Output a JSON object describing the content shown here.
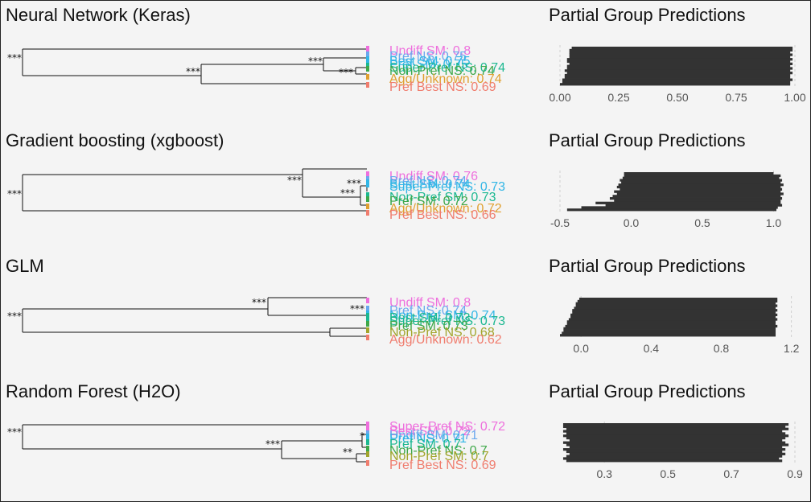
{
  "palette": {
    "background": "#f4f4f4",
    "bar": "#333333",
    "branch": "#111111",
    "leaf_colors": [
      "#ee6fdd",
      "#6aa8ee",
      "#32b6e6",
      "#1db891",
      "#3fa84a",
      "#a2a52c",
      "#e0a030",
      "#f07d6e"
    ]
  },
  "chart_data": [
    {
      "type": "dendrogram+bar",
      "model_title": "Neural Network (Keras)",
      "bar_title": "Partial Group Predictions",
      "leaves": [
        {
          "label": "Undiff SM: 0.8",
          "color_index": 0
        },
        {
          "label": "Pref NS: 0.75",
          "color_index": 1
        },
        {
          "label": "Best SM: 0.75",
          "color_index": 2
        },
        {
          "label": "Pref SM: 0.75",
          "color_index": 2
        },
        {
          "label": "Super-Pref NS: 0.74",
          "color_index": 3
        },
        {
          "label": "Non-Pref NS: 0.74",
          "color_index": 4
        },
        {
          "label": "Agg/Unknown: 0.74",
          "color_index": 6
        },
        {
          "label": "Pref Best NS: 0.69",
          "color_index": 7
        }
      ],
      "significance": [
        "***",
        "***",
        "***",
        "***"
      ],
      "xlim": [
        0,
        1
      ],
      "xticks": [
        0.0,
        0.25,
        0.5,
        0.75,
        1.0
      ],
      "xtick_labels": [
        "0.00",
        "0.25",
        "0.50",
        "0.75",
        "1.00"
      ],
      "bars": [
        [
          0.05,
          0.99
        ],
        [
          0.04,
          0.99
        ],
        [
          0.04,
          0.98
        ],
        [
          0.04,
          0.99
        ],
        [
          0.04,
          0.98
        ],
        [
          0.03,
          0.99
        ],
        [
          0.03,
          0.98
        ],
        [
          0.04,
          0.99
        ],
        [
          0.03,
          0.98
        ],
        [
          0.03,
          0.99
        ],
        [
          0.02,
          0.98
        ],
        [
          0.03,
          0.99
        ],
        [
          0.02,
          0.98
        ],
        [
          0.02,
          0.98
        ],
        [
          0.01,
          0.99
        ],
        [
          0.01,
          0.98
        ],
        [
          0.0,
          0.98
        ]
      ]
    },
    {
      "type": "dendrogram+bar",
      "model_title": "Gradient boosting (xgboost)",
      "bar_title": "Partial Group Predictions",
      "leaves": [
        {
          "label": "Undiff SM: 0.76",
          "color_index": 0
        },
        {
          "label": "Pref NS: 0.74",
          "color_index": 1
        },
        {
          "label": "Best SM: 0.74",
          "color_index": 2
        },
        {
          "label": "Super-Pref NS: 0.73",
          "color_index": 2
        },
        {
          "label": "Non-Pref SM: 0.73",
          "color_index": 3
        },
        {
          "label": "Pref SM: 0.72",
          "color_index": 4
        },
        {
          "label": "Agg/Unknown: 0.72",
          "color_index": 6
        },
        {
          "label": "Pref Best NS: 0.66",
          "color_index": 7
        }
      ],
      "significance": [
        "***",
        "***",
        "***",
        "***"
      ],
      "xlim": [
        -0.5,
        1.15
      ],
      "xticks": [
        -0.5,
        0.0,
        0.5,
        1.0
      ],
      "xtick_labels": [
        "-0.5",
        "0.0",
        "0.5",
        "1.0"
      ],
      "bars": [
        [
          -0.05,
          1.0
        ],
        [
          -0.05,
          1.05
        ],
        [
          -0.06,
          1.04
        ],
        [
          -0.08,
          1.06
        ],
        [
          -0.07,
          1.05
        ],
        [
          -0.09,
          1.07
        ],
        [
          -0.1,
          1.05
        ],
        [
          -0.08,
          1.06
        ],
        [
          -0.12,
          1.05
        ],
        [
          -0.1,
          1.07
        ],
        [
          -0.13,
          1.05
        ],
        [
          -0.15,
          1.06
        ],
        [
          -0.12,
          1.05
        ],
        [
          -0.25,
          1.05
        ],
        [
          -0.18,
          1.06
        ],
        [
          -0.35,
          1.03
        ],
        [
          -0.45,
          1.02
        ]
      ]
    },
    {
      "type": "dendrogram+bar",
      "model_title": "GLM",
      "bar_title": "Partial Group Predictions",
      "leaves": [
        {
          "label": "Undiff SM: 0.8",
          "color_index": 0
        },
        {
          "label": "Pref NS: 0.74",
          "color_index": 1
        },
        {
          "label": "Non-Pref SM: 0.74",
          "color_index": 2
        },
        {
          "label": "Best SM: 0.73",
          "color_index": 3
        },
        {
          "label": "Super-Pref NS: 0.73",
          "color_index": 3
        },
        {
          "label": "Pref SM: 0.73",
          "color_index": 4
        },
        {
          "label": "Non-Pref NS: 0.68",
          "color_index": 5
        },
        {
          "label": "Agg/Unknown: 0.62",
          "color_index": 7
        }
      ],
      "significance": [
        "***",
        "***",
        "***"
      ],
      "xlim": [
        -0.12,
        1.22
      ],
      "xticks": [
        0.0,
        0.4,
        0.8,
        1.2
      ],
      "xtick_labels": [
        "0.0",
        "0.4",
        "0.8",
        "1.2"
      ],
      "bars": [
        [
          -0.01,
          1.12
        ],
        [
          -0.02,
          1.12
        ],
        [
          -0.03,
          1.11
        ],
        [
          -0.03,
          1.12
        ],
        [
          -0.04,
          1.11
        ],
        [
          -0.05,
          1.12
        ],
        [
          -0.05,
          1.11
        ],
        [
          -0.06,
          1.12
        ],
        [
          -0.06,
          1.11
        ],
        [
          -0.07,
          1.12
        ],
        [
          -0.08,
          1.11
        ],
        [
          -0.08,
          1.11
        ],
        [
          -0.09,
          1.12
        ],
        [
          -0.1,
          1.11
        ],
        [
          -0.1,
          1.11
        ],
        [
          -0.11,
          1.11
        ],
        [
          -0.12,
          1.11
        ]
      ]
    },
    {
      "type": "dendrogram+bar",
      "model_title": "Random Forest (H2O)",
      "bar_title": "Partial Group Predictions",
      "leaves": [
        {
          "label": "Super-Pref NS: 0.72",
          "color_index": 0
        },
        {
          "label": "Best SM: 0.72",
          "color_index": 0
        },
        {
          "label": "Undiff SM: 0.71",
          "color_index": 1
        },
        {
          "label": "Pref NS: 0.71",
          "color_index": 2
        },
        {
          "label": "Pref SM: 0.7",
          "color_index": 3
        },
        {
          "label": "Non-Pref NS: 0.7",
          "color_index": 4
        },
        {
          "label": "Non-Pref SM: 0.7",
          "color_index": 5
        },
        {
          "label": "Pref Best NS: 0.69",
          "color_index": 7
        }
      ],
      "significance": [
        "***",
        "*",
        "***",
        "**"
      ],
      "xlim": [
        0.16,
        0.9
      ],
      "xticks": [
        0.3,
        0.5,
        0.7,
        0.9
      ],
      "xtick_labels": [
        "0.3",
        "0.5",
        "0.7",
        "0.9"
      ],
      "bars": [
        [
          0.17,
          0.88
        ],
        [
          0.17,
          0.87
        ],
        [
          0.18,
          0.88
        ],
        [
          0.17,
          0.86
        ],
        [
          0.18,
          0.87
        ],
        [
          0.17,
          0.88
        ],
        [
          0.18,
          0.87
        ],
        [
          0.19,
          0.86
        ],
        [
          0.17,
          0.87
        ],
        [
          0.18,
          0.88
        ],
        [
          0.19,
          0.86
        ],
        [
          0.17,
          0.87
        ],
        [
          0.18,
          0.86
        ],
        [
          0.19,
          0.87
        ],
        [
          0.18,
          0.86
        ],
        [
          0.17,
          0.85
        ],
        [
          0.18,
          0.86
        ]
      ]
    }
  ]
}
